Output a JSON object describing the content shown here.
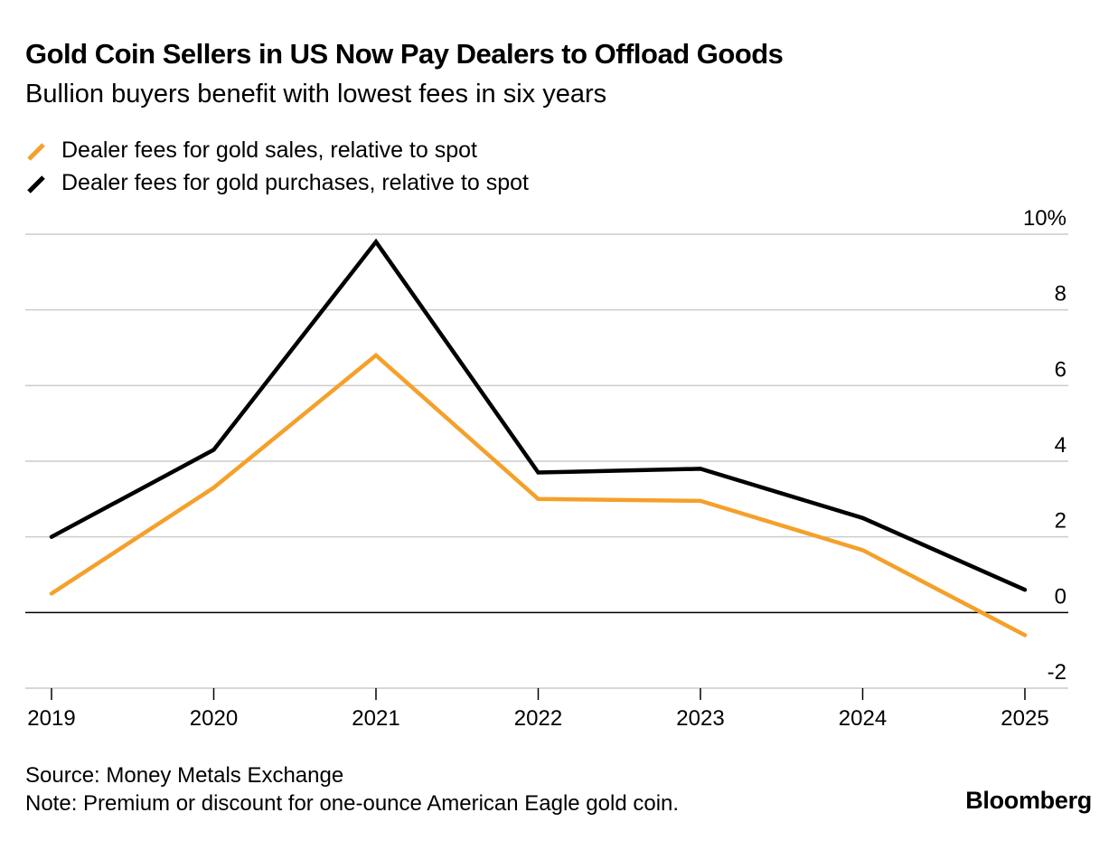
{
  "header": {
    "title": "Gold Coin Sellers in US Now Pay Dealers to Offload Goods",
    "subtitle": "Bullion buyers benefit with lowest fees in six years"
  },
  "legend": [
    {
      "label": "Dealer fees for gold sales, relative to spot",
      "color": "#f5a02a"
    },
    {
      "label": "Dealer fees for gold purchases, relative to spot",
      "color": "#000000"
    }
  ],
  "chart_data": {
    "type": "line",
    "title": "Gold Coin Sellers in US Now Pay Dealers to Offload Goods",
    "subtitle": "Bullion buyers benefit with lowest fees in six years",
    "x": [
      "2019",
      "2020",
      "2021",
      "2022",
      "2023",
      "2024",
      "2025"
    ],
    "series": [
      {
        "name": "Dealer fees for gold sales, relative to spot",
        "color": "#f5a02a",
        "values": [
          0.5,
          3.3,
          6.8,
          3.0,
          2.95,
          1.65,
          -0.6
        ]
      },
      {
        "name": "Dealer fees for gold purchases, relative to spot",
        "color": "#000000",
        "values": [
          2.0,
          4.3,
          9.8,
          3.7,
          3.8,
          2.5,
          0.6
        ]
      }
    ],
    "ylim": [
      -2,
      10
    ],
    "yticks": [
      10,
      8,
      6,
      4,
      2,
      0,
      -2
    ],
    "ytick_labels": [
      "10%",
      "8",
      "6",
      "4",
      "2",
      "0",
      "-2"
    ],
    "grid": true,
    "y_axis_side": "right",
    "xlabel": "",
    "ylabel": ""
  },
  "footer": {
    "source": "Source: Money Metals Exchange",
    "note": "Note: Premium or discount for one-ounce American Eagle gold coin."
  },
  "brand": "Bloomberg"
}
